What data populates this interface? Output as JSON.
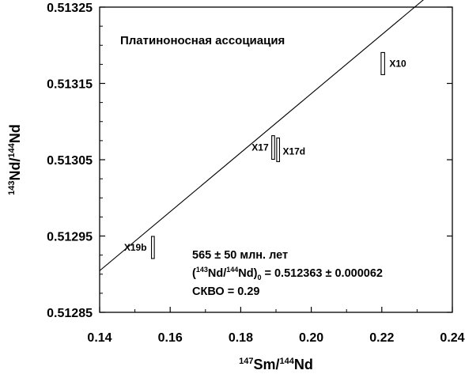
{
  "chart_data": {
    "type": "scatter",
    "title": "Платиноносная ассоциация",
    "xlabel": {
      "sup1": "147",
      "main1": "Sm/",
      "sup2": "144",
      "main2": "Nd"
    },
    "ylabel": {
      "sup1": "143",
      "main1": "Nd/",
      "sup2": "144",
      "main2": "Nd"
    },
    "xlim": [
      0.14,
      0.24
    ],
    "ylim": [
      0.51285,
      0.51325
    ],
    "x_ticks": [
      0.14,
      0.16,
      0.18,
      0.2,
      0.22,
      0.24
    ],
    "x_tick_labels": [
      "0.14",
      "0.16",
      "0.18",
      "0.20",
      "0.22",
      "0.24"
    ],
    "y_ticks": [
      0.51285,
      0.51295,
      0.51305,
      0.51315,
      0.51325
    ],
    "y_tick_labels": [
      "0.51285",
      "0.51295",
      "0.51305",
      "0.51315",
      "0.51325"
    ],
    "grid": false,
    "points": [
      {
        "label": "X19b",
        "x": 0.1551,
        "y": 0.512935,
        "x_err": 0.0004,
        "y_err": 1.45e-05
      },
      {
        "label": "X17",
        "x": 0.1892,
        "y": 0.513066,
        "x_err": 0.0004,
        "y_err": 1.55e-05
      },
      {
        "label": "X17d",
        "x": 0.1906,
        "y": 0.513063,
        "x_err": 0.0004,
        "y_err": 1.55e-05
      },
      {
        "label": "X10",
        "x": 0.2203,
        "y": 0.513176,
        "x_err": 0.0005,
        "y_err": 1.45e-05
      }
    ],
    "isochron": {
      "slope": 0.003868,
      "intercept": 0.512363,
      "x_range": [
        0.14,
        0.24
      ]
    },
    "annotations": {
      "age": "565 ± 50 млн. лет",
      "initial_ratio": {
        "open": "(",
        "sup1": "143",
        "mid1": "Nd/",
        "sup2": "144",
        "mid2": "Nd)",
        "sub": "0",
        "value": " = 0.512363 ± 0.000062"
      },
      "mswd": "СКВО = 0.29"
    }
  }
}
